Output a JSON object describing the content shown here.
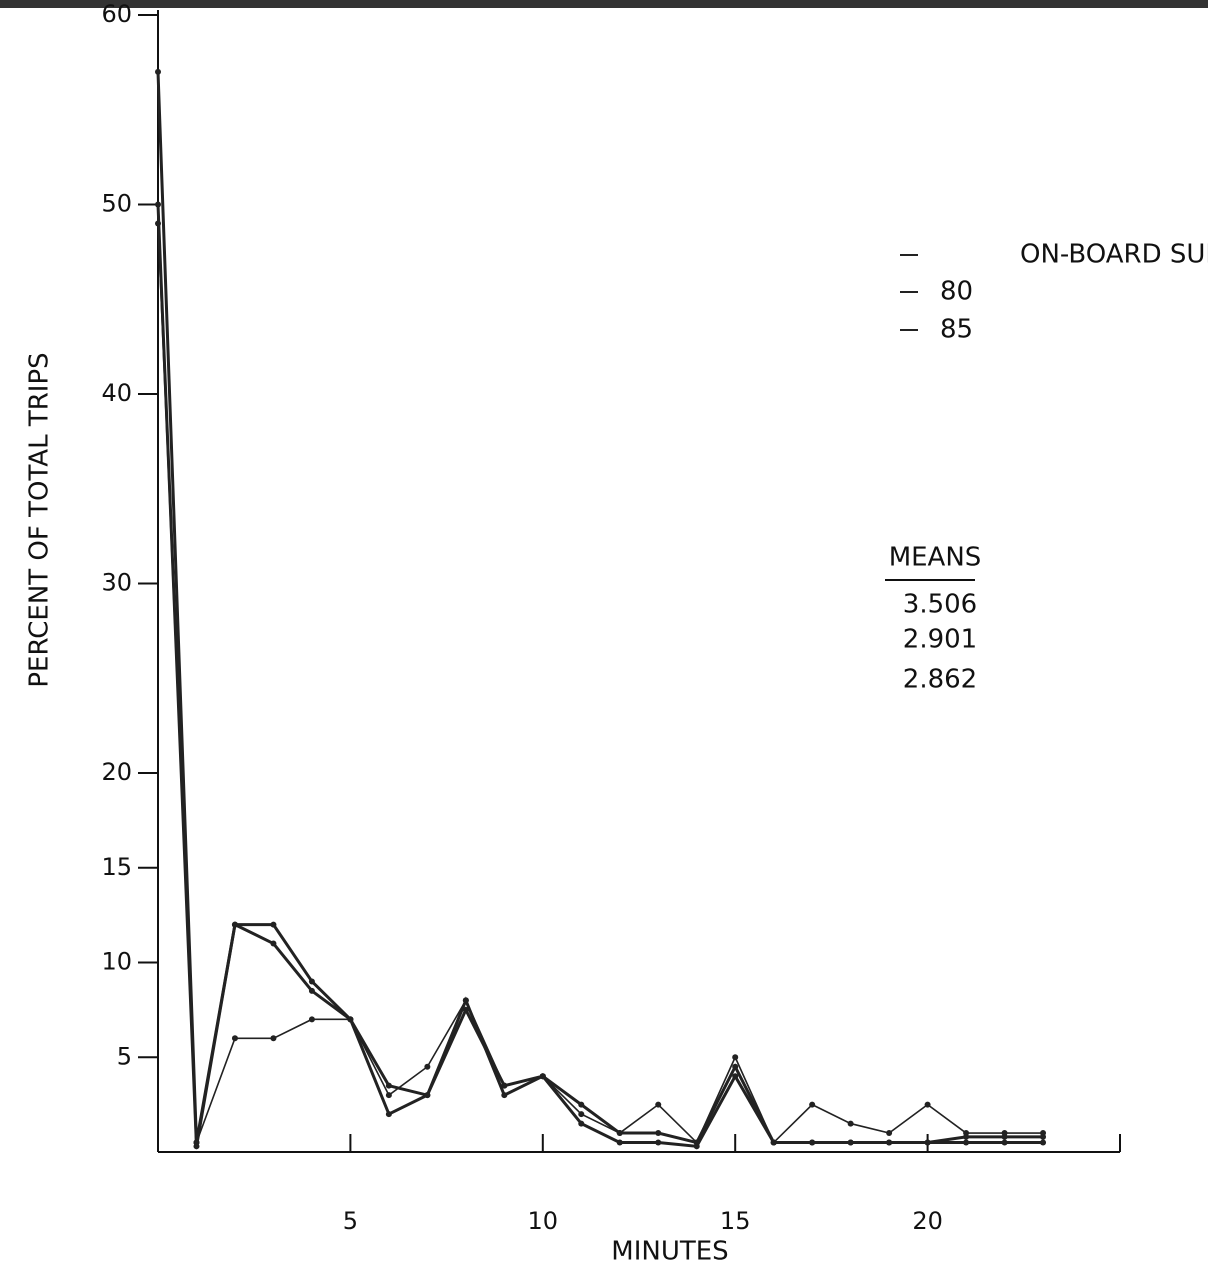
{
  "chart_data": {
    "type": "line",
    "x_label": "MINUTES",
    "y_label": "PERCENT OF TOTAL TRIPS",
    "x": [
      0,
      1,
      2,
      3,
      4,
      5,
      6,
      7,
      8,
      9,
      10,
      11,
      12,
      13,
      14,
      15,
      16,
      17,
      18,
      19,
      20,
      21,
      22,
      23
    ],
    "series": [
      {
        "name": "ON-BOARD SURVEY",
        "color": "#222222",
        "values": [
          49,
          0.5,
          6,
          6,
          7,
          7,
          3,
          4.5,
          8,
          3.5,
          4,
          2,
          1,
          2.5,
          0.5,
          5,
          0.5,
          2.5,
          1.5,
          1,
          2.5,
          1,
          1,
          1
        ]
      },
      {
        "name": "80",
        "color": "#222222",
        "values": [
          57,
          0.5,
          12,
          12,
          9,
          7,
          3.5,
          3,
          8,
          3,
          4,
          2.5,
          1,
          1,
          0.5,
          4.5,
          0.5,
          0.5,
          0.5,
          0.5,
          0.5,
          0.5,
          0.5,
          0.5
        ]
      },
      {
        "name": "85",
        "color": "#222222",
        "values": [
          50,
          0.3,
          12,
          11,
          8.5,
          7,
          2,
          3,
          7.5,
          3.5,
          4,
          1.5,
          0.5,
          0.5,
          0.3,
          4,
          0.5,
          0.5,
          0.5,
          0.5,
          0.5,
          0.8,
          0.8,
          0.8
        ]
      }
    ],
    "means_title": "MEANS",
    "means": [
      3.506,
      2.901,
      2.862
    ],
    "xlim": [
      0,
      25
    ],
    "ylim": [
      0,
      60
    ],
    "xticks": [
      5,
      10,
      15,
      20
    ],
    "yticks": [
      5,
      10,
      15,
      20,
      30,
      40,
      50,
      60
    ]
  }
}
